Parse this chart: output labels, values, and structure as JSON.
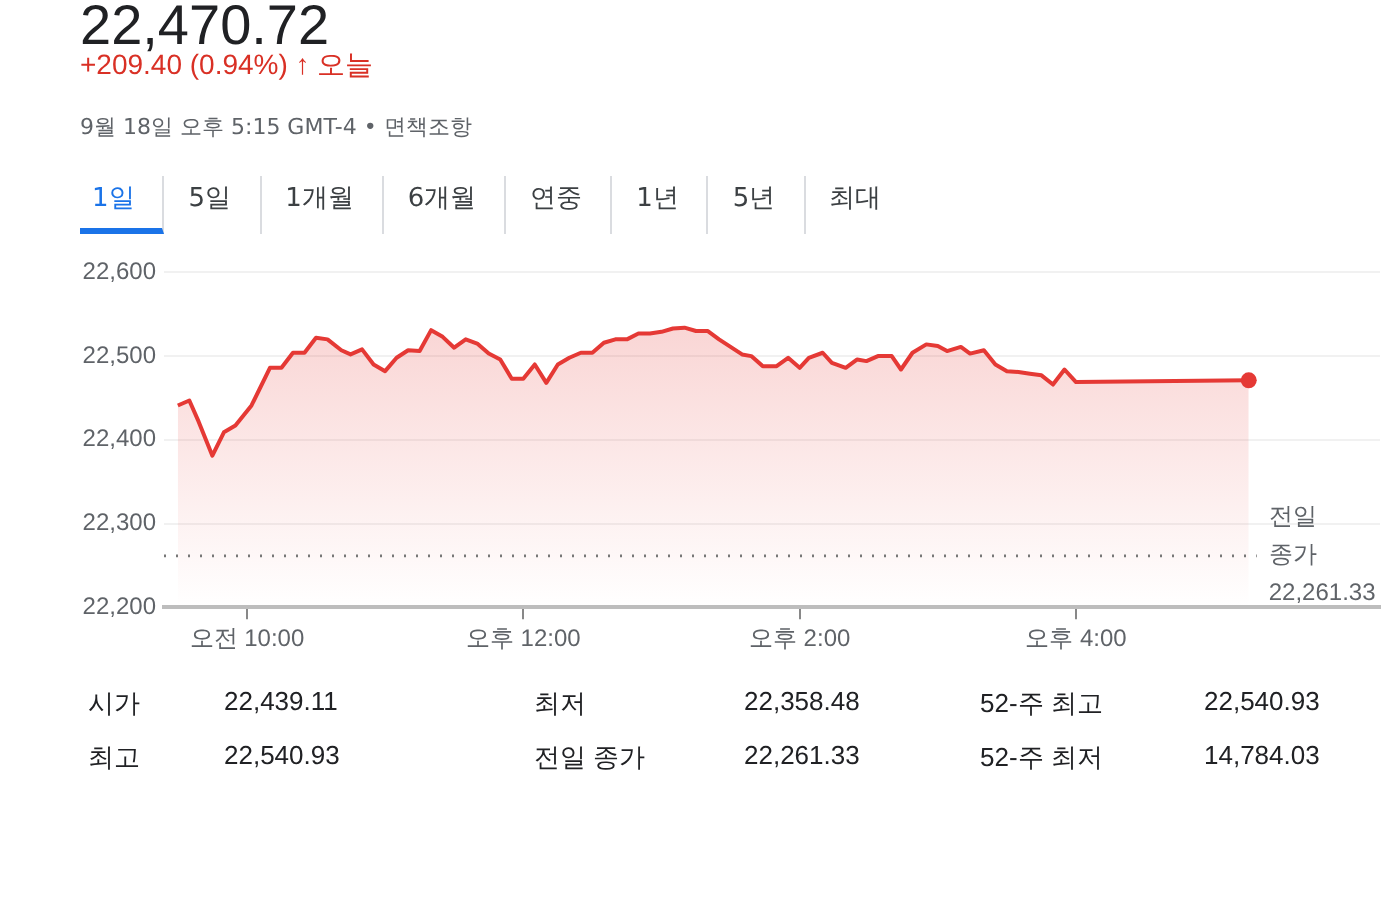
{
  "chart_data": {
    "type": "area",
    "title": "22,470.72",
    "subtitle": "+209.40 (0.94%) ↑ 오늘",
    "annotations": [
      "9월 18일 오후 5:15 GMT-4 • 면책조항",
      "1일",
      "5일",
      "1개월",
      "6개월",
      "연중",
      "1년",
      "5년",
      "최대",
      "시가",
      "22,439.11",
      "최저",
      "22,358.48",
      "52-주 최고",
      "22,540.93",
      "최고",
      "22,540.93",
      "전일 종가",
      "22,261.33",
      "52-주 최저",
      "14,784.03"
    ],
    "x": [
      "--09-18T09:30",
      "--09-18T09:35",
      "--09-18T09:39",
      "--09-18T09:45",
      "--09-18T09:50",
      "--09-18T09:55",
      "--09-18T10:02",
      "--09-18T10:10",
      "--09-18T10:15",
      "--09-18T10:20",
      "--09-18T10:25",
      "--09-18T10:30",
      "--09-18T10:35",
      "--09-18T10:41",
      "--09-18T10:45",
      "--09-18T10:50",
      "--09-18T10:55",
      "--09-18T11:00",
      "--09-18T11:05",
      "--09-18T11:10",
      "--09-18T11:15",
      "--09-18T11:20",
      "--09-18T11:25",
      "--09-18T11:30",
      "--09-18T11:35",
      "--09-18T11:40",
      "--09-18T11:45",
      "--09-18T11:50",
      "--09-18T11:55",
      "--09-18T12:00",
      "--09-18T12:05",
      "--09-18T12:10",
      "--09-18T12:15",
      "--09-18T12:20",
      "--09-18T12:25",
      "--09-18T12:30",
      "--09-18T12:35",
      "--09-18T12:40",
      "--09-18T12:45",
      "--09-18T12:50",
      "--09-18T12:55",
      "--09-18T13:00",
      "--09-18T13:05",
      "--09-18T13:10",
      "--09-18T13:15",
      "--09-18T13:20",
      "--09-18T13:25",
      "--09-18T13:35",
      "--09-18T13:39",
      "--09-18T13:44",
      "--09-18T13:50",
      "--09-18T13:55",
      "--09-18T14:00",
      "--09-18T14:04",
      "--09-18T14:10",
      "--09-18T14:14",
      "--09-18T14:20",
      "--09-18T14:25",
      "--09-18T14:29",
      "--09-18T14:34",
      "--09-18T14:40",
      "--09-18T14:44",
      "--09-18T14:49",
      "--09-18T14:55",
      "--09-18T15:00",
      "--09-18T15:04",
      "--09-18T15:10",
      "--09-18T15:14",
      "--09-18T15:20",
      "--09-18T15:25",
      "--09-18T15:30",
      "--09-18T15:35",
      "--09-18T15:40",
      "--09-18T15:45",
      "--09-18T15:50",
      "--09-18T15:55",
      "--09-18T16:00",
      "--09-18T17:15"
    ],
    "series": [
      {
        "color": "#e53935",
        "values": [
          22441,
          22447,
          22422,
          22381,
          22409,
          22417,
          22441,
          22486,
          22486,
          22504,
          22504,
          22522,
          22520,
          22507,
          22502,
          22508,
          22490,
          22482,
          22498,
          22507,
          22506,
          22531,
          22523,
          22510,
          22520,
          22515,
          22503,
          22496,
          22473,
          22473,
          22490,
          22468,
          22490,
          22498,
          22504,
          22504,
          22516,
          22520,
          22520,
          22527,
          22527,
          22529,
          22533,
          22534,
          22530,
          22530,
          22520,
          22502,
          22500,
          22488,
          22488,
          22498,
          22486,
          22498,
          22504,
          22492,
          22486,
          22496,
          22494,
          22500,
          22500,
          22484,
          22504,
          22514,
          22512,
          22506,
          22511,
          22503,
          22507,
          22490,
          22482,
          22481,
          22479,
          22477,
          22466,
          22484,
          22469,
          22471
        ]
      }
    ],
    "xlim": [
      "--09-18T09:24",
      "--09-18T18:12"
    ],
    "xticks": [
      {
        "value": "--09-18T10:00",
        "label": "오전 10:00"
      },
      {
        "value": "--09-18T12:00",
        "label": "오후 12:00"
      },
      {
        "value": "--09-18T14:00",
        "label": "오후 2:00"
      },
      {
        "value": "--09-18T16:00",
        "label": "오후 4:00"
      }
    ],
    "ylim": [
      22200,
      22600
    ],
    "yticks": [
      {
        "value": 22200,
        "label": "22,200"
      },
      {
        "value": 22300,
        "label": "22,300"
      },
      {
        "value": 22400,
        "label": "22,400"
      },
      {
        "value": 22500,
        "label": "22,500"
      },
      {
        "value": 22600,
        "label": "22,600"
      }
    ],
    "grid": "y",
    "legend": false,
    "marker": "none",
    "line_style": "solid",
    "ref_lines": [
      {
        "axis": "y",
        "value": 22261.33,
        "label": "전일 종가 22,261.33",
        "color": "#777777",
        "line_style": "dotted"
      }
    ]
  }
}
